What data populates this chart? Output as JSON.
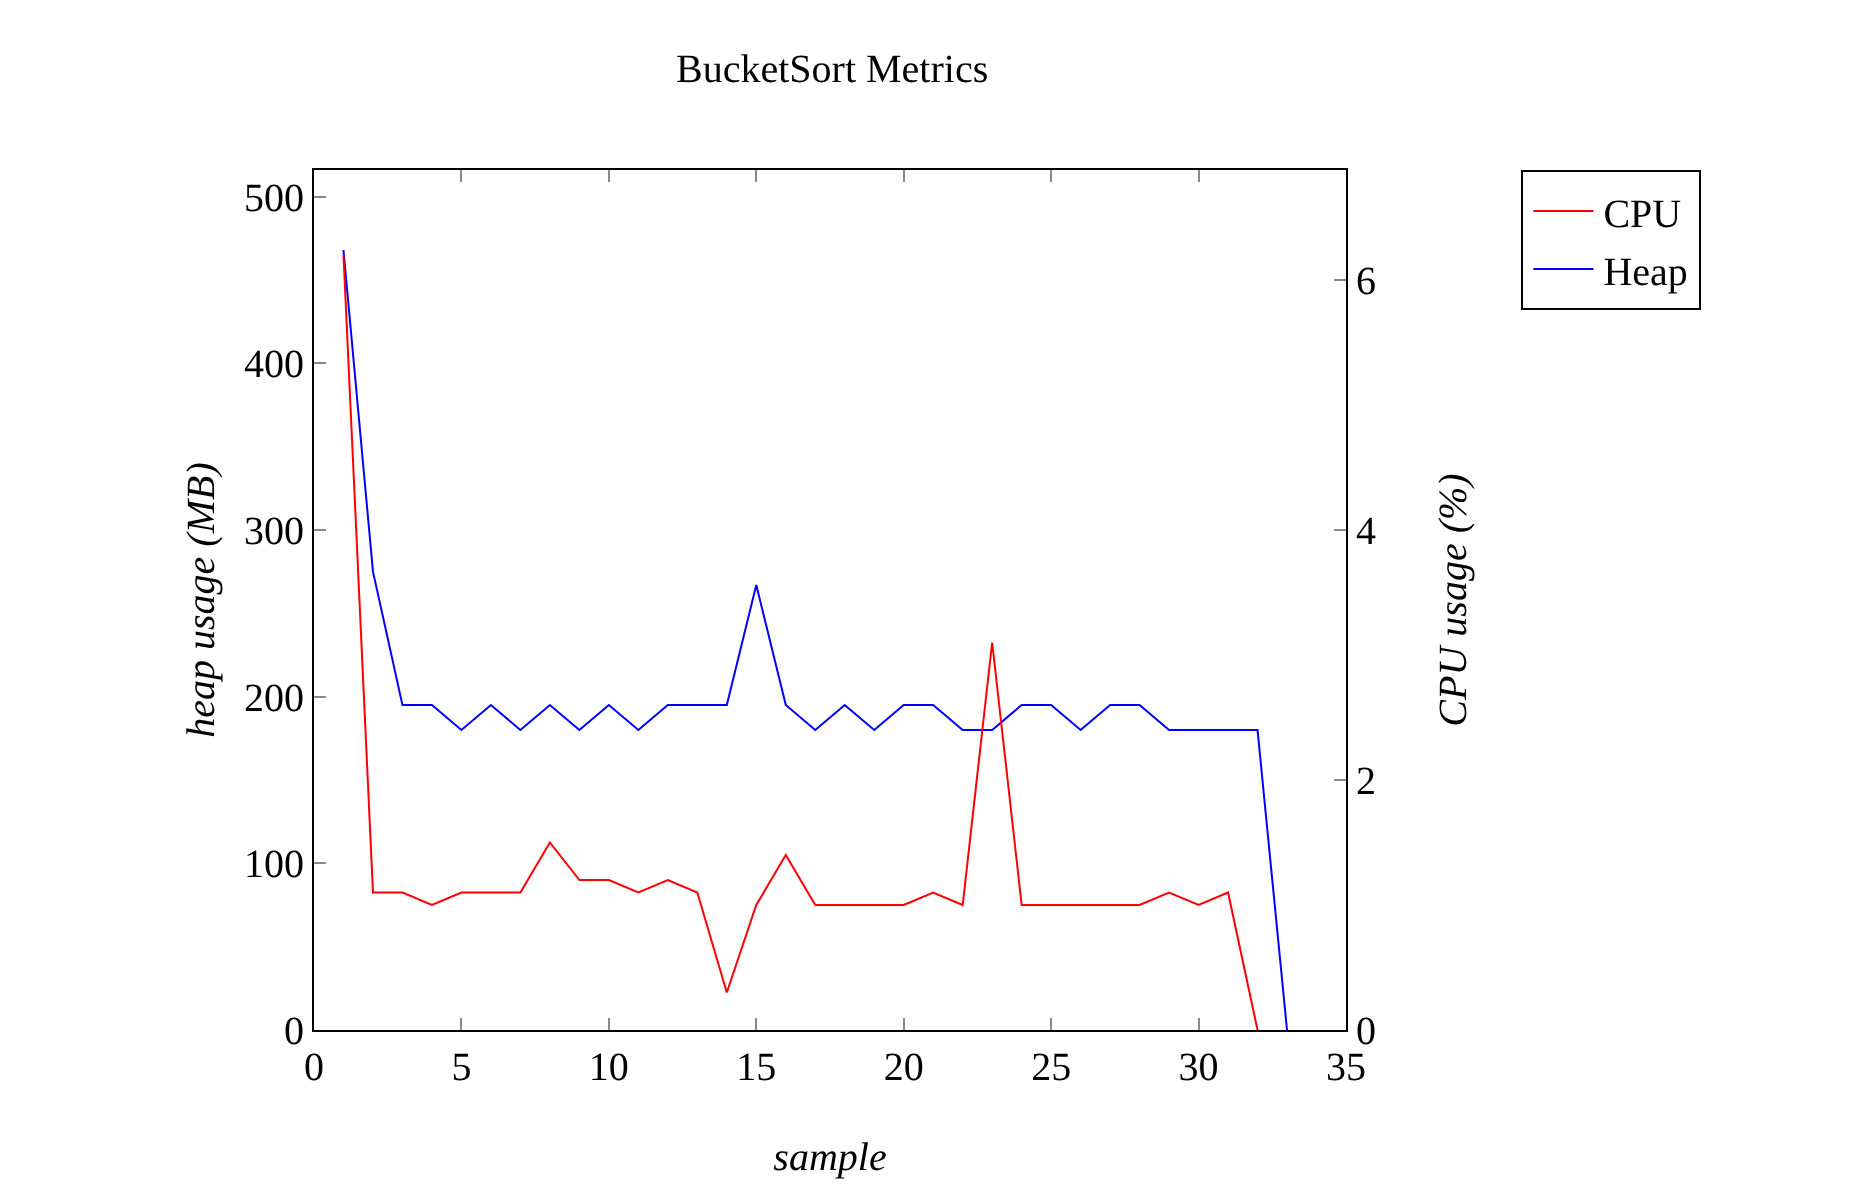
{
  "chart_data": {
    "type": "line",
    "title": "BucketSort Metrics",
    "xlabel": "sample",
    "ylabel": "heap usage (MB)",
    "y2label": "CPU usage (%)",
    "xlim": [
      0,
      35
    ],
    "xticks": [
      0,
      5,
      10,
      15,
      20,
      25,
      30,
      35
    ],
    "ylim": [
      0,
      516
    ],
    "yticks": [
      0,
      100,
      200,
      300,
      400,
      500
    ],
    "y2lim": [
      0,
      6.88
    ],
    "y2ticks": [
      0,
      2,
      4,
      6
    ],
    "legend": "top right",
    "grid": false,
    "marker": "none",
    "line_style": "solid",
    "series": [
      {
        "name": "CPU",
        "color": "#ff0000",
        "axis": "y2",
        "x": [
          1,
          2,
          3,
          4,
          5,
          6,
          7,
          8,
          9,
          10,
          11,
          12,
          13,
          14,
          15,
          16,
          17,
          18,
          19,
          20,
          21,
          22,
          23,
          24,
          25,
          26,
          27,
          28,
          29,
          30,
          31,
          32
        ],
        "values": [
          6.2,
          1.1,
          1.1,
          1.0,
          1.1,
          1.1,
          1.1,
          1.5,
          1.2,
          1.2,
          1.1,
          1.2,
          1.1,
          0.3,
          1.0,
          1.4,
          1.0,
          1.0,
          1.0,
          1.0,
          1.1,
          1.0,
          3.1,
          1.0,
          1.0,
          1.0,
          1.0,
          1.0,
          1.1,
          1.0,
          1.1,
          0
        ]
      },
      {
        "name": "Heap",
        "color": "#0000ff",
        "x": [
          1,
          2,
          3,
          4,
          5,
          6,
          7,
          8,
          9,
          10,
          11,
          12,
          13,
          14,
          15,
          16,
          17,
          18,
          19,
          20,
          21,
          22,
          23,
          24,
          25,
          26,
          27,
          28,
          29,
          30,
          31,
          32,
          33
        ],
        "values": [
          468,
          275,
          195,
          195,
          180,
          195,
          180,
          195,
          180,
          195,
          180,
          195,
          195,
          195,
          267,
          195,
          180,
          195,
          180,
          195,
          195,
          180,
          180,
          195,
          195,
          180,
          195,
          195,
          180,
          180,
          180,
          180,
          0
        ]
      }
    ]
  }
}
